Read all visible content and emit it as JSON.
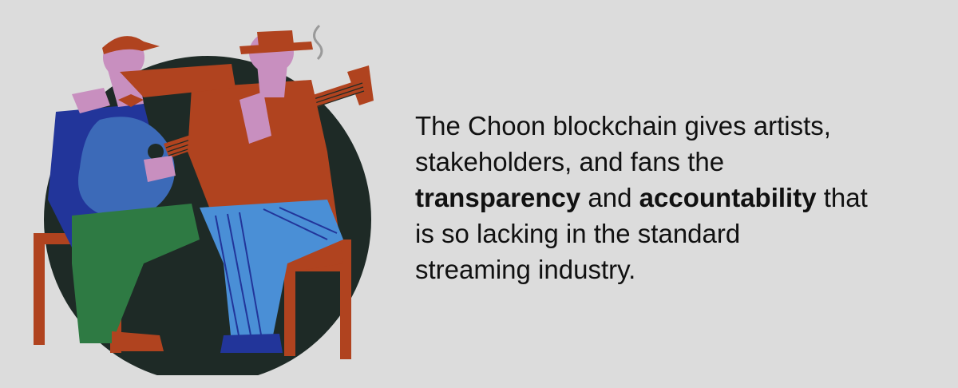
{
  "caption": {
    "line1": " The Choon blockchain gives artists,",
    "line2": "stakeholders, and fans the",
    "line3_bold1": "transparency",
    "line3_mid": " and ",
    "line3_bold2": "accountability",
    "line3_end": " that",
    "line4": "is so lacking in the standard",
    "line5": "streaming industry."
  },
  "colors": {
    "background": "#dcdcdc",
    "text": "#111111",
    "circle": "#1e2a26",
    "rust": "#b0431f",
    "pink": "#c88fbf",
    "navy": "#22359a",
    "blue": "#3c6ab8",
    "lightblue": "#4a8fd6",
    "green": "#2e7a43"
  }
}
